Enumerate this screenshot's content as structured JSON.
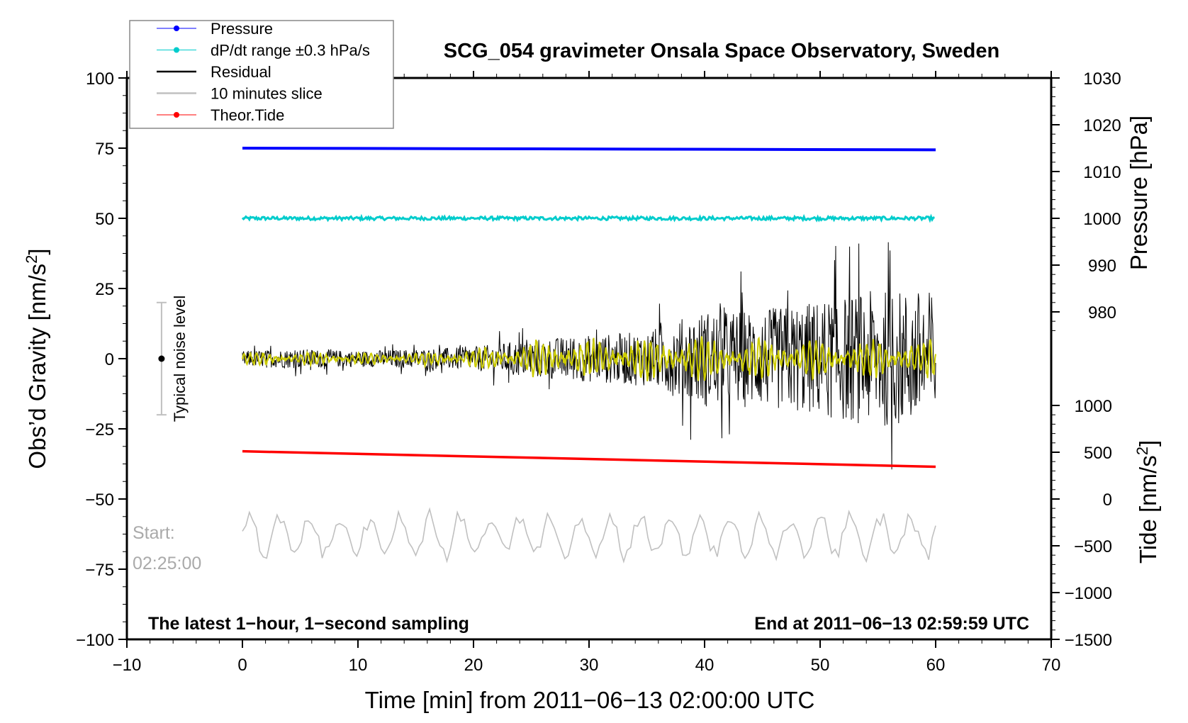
{
  "chart_data": {
    "type": "line",
    "title": "SCG_054 gravimeter Onsala Space Observatory, Sweden",
    "xlabel": "Time [min] from 2011−06−13 02:00:00 UTC",
    "ylabel": "Obs’d Gravity [nm/s²]",
    "ylabel_main": "Obs’d Gravity [nm/s",
    "ylabel_sup": "2",
    "ylabel_end": "]",
    "y2label": "Pressure [hPa]",
    "y3label_main": "Tide [nm/s",
    "y3label_sup": "2",
    "y3label_end": "]",
    "xlim": [
      -10,
      70
    ],
    "ylim": [
      -100,
      100
    ],
    "xticks": [
      "−10",
      "0",
      "10",
      "20",
      "30",
      "40",
      "50",
      "60",
      "70"
    ],
    "xtick_values": [
      -10,
      0,
      10,
      20,
      30,
      40,
      50,
      60,
      70
    ],
    "yticks": [
      "100",
      "75",
      "50",
      "25",
      "0",
      "−25",
      "−50",
      "−75",
      "−100"
    ],
    "ytick_values": [
      100,
      75,
      50,
      25,
      0,
      -25,
      -50,
      -75,
      -100
    ],
    "pressure_ticks": [
      "1030",
      "1020",
      "1010",
      "1000",
      "990",
      "980"
    ],
    "pressure_tick_values": [
      1030,
      1020,
      1010,
      1000,
      990,
      980
    ],
    "pressure_axis": {
      "at_y100": 1030,
      "at_y50": 1000
    },
    "tide_ticks": [
      "1000",
      "500",
      "0",
      "−500",
      "−1000",
      "−1500"
    ],
    "tide_tick_values": [
      1000,
      500,
      0,
      -500,
      -1000,
      -1500
    ],
    "tide_axis": {
      "at_y_minus100": -1500,
      "at_y_minus50": 0
    },
    "legend": {
      "placement": "top-left",
      "entries": [
        {
          "label": "Pressure",
          "color": "#0000ff",
          "marker": true
        },
        {
          "label": "dP/dt range ±0.3 hPa/s",
          "color": "#00cccc",
          "marker": true
        },
        {
          "label": "Residual",
          "color": "#000000",
          "marker": false
        },
        {
          "label": "10 minutes slice",
          "color": "#c0c0c0",
          "marker": false
        },
        {
          "label": "Theor.Tide",
          "color": "#ff0000",
          "marker": true
        }
      ]
    },
    "series": [
      {
        "name": "Pressure",
        "color": "#0000ff",
        "x": [
          0,
          60
        ],
        "values_hpa": [
          1015.0,
          1014.6
        ],
        "plotted_y": [
          75,
          74.4
        ]
      },
      {
        "name": "dP/dt range",
        "color": "#00cccc",
        "x": [
          0,
          60
        ],
        "plotted_y": [
          50,
          50
        ]
      },
      {
        "name": "Residual",
        "color": "#000000",
        "x_bins": [
          0,
          5,
          10,
          15,
          20,
          25,
          30,
          35,
          40,
          45,
          50,
          55,
          60
        ],
        "amplitude": [
          4,
          5,
          4,
          5,
          6,
          10,
          12,
          14,
          25,
          25,
          30,
          35,
          35
        ]
      },
      {
        "name": "Residual filtered",
        "color": "#cccc00",
        "x_bins": [
          0,
          5,
          10,
          15,
          20,
          25,
          30,
          35,
          40,
          45,
          50,
          55,
          60
        ],
        "amplitude": [
          2,
          2,
          2,
          2,
          3,
          6,
          6,
          7,
          7,
          6,
          6,
          6,
          6
        ]
      },
      {
        "name": "Theor.Tide",
        "color": "#ff0000",
        "x": [
          0,
          60
        ],
        "plotted_y": [
          -33,
          -38.5
        ]
      },
      {
        "name": "10 minutes slice",
        "color": "#c0c0c0",
        "x": [
          0,
          60
        ],
        "center_y": -63,
        "amplitude": 9
      }
    ],
    "annotations": {
      "noise_label": "Typical noise level",
      "noise_range": [
        -20,
        20
      ],
      "noise_x": -7,
      "start_label": "Start:",
      "start_time": "02:25:00",
      "bottom_left": "The latest 1−hour, 1−second sampling",
      "bottom_right": "End at 2011−06−13 02:59:59 UTC"
    }
  }
}
